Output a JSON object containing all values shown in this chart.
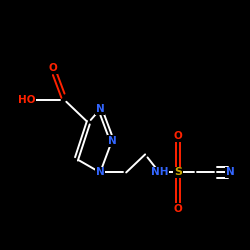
{
  "background_color": "#000000",
  "line_color": "#ffffff",
  "atom_colors": {
    "O": "#ff2200",
    "N": "#3366ff",
    "S": "#ccaa00",
    "C": "#ffffff"
  },
  "figsize": [
    2.5,
    2.5
  ],
  "dpi": 100,
  "bond_lw": 1.4,
  "font_size": 7.5
}
